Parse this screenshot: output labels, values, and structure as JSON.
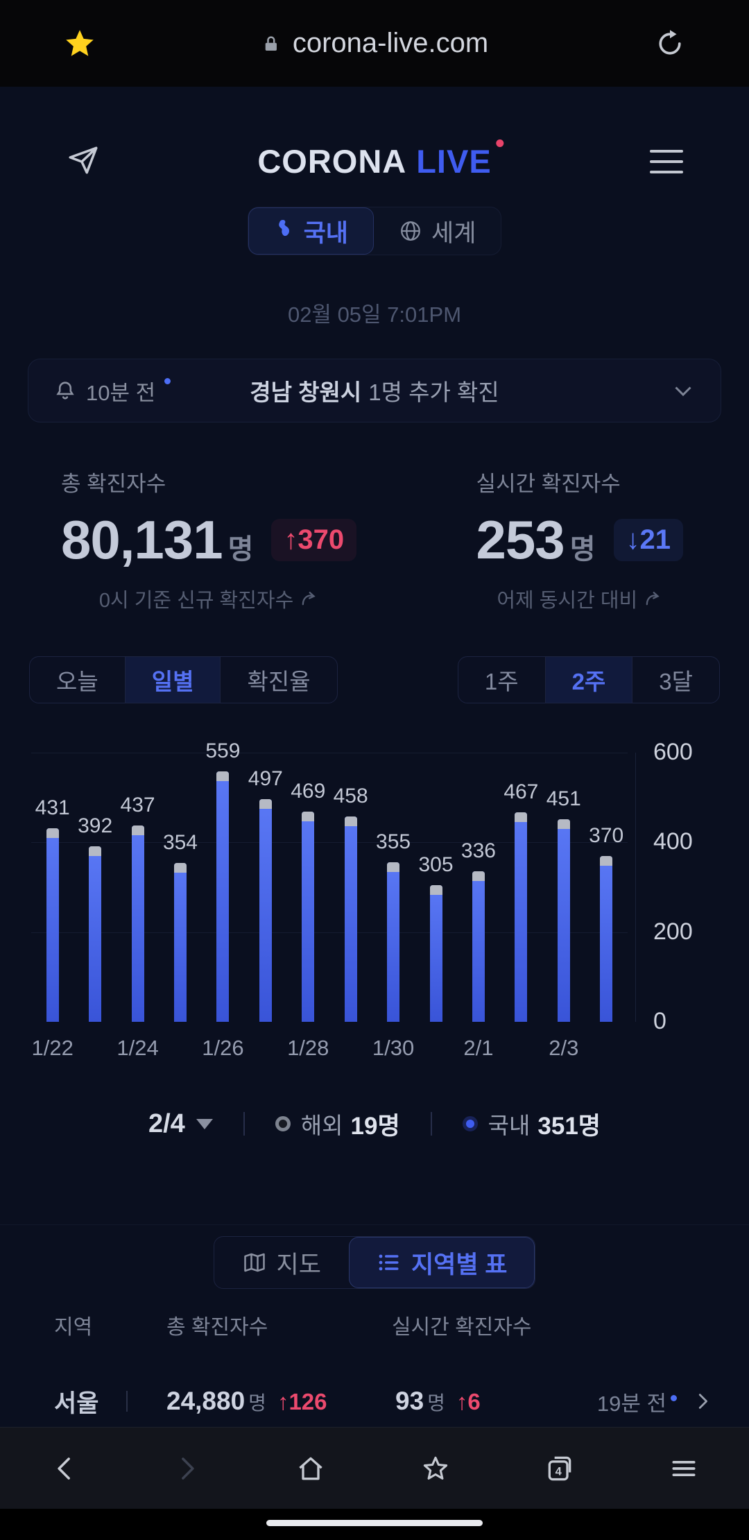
{
  "browser": {
    "url": "corona-live.com"
  },
  "header": {
    "brand_primary": "CORONA",
    "brand_accent": "LIVE"
  },
  "nav_tabs": {
    "domestic": "국내",
    "world": "세계"
  },
  "timestamp": "02월 05일 7:01PM",
  "notification": {
    "time_ago": "10분 전",
    "region": "경남 창원시",
    "message": "1명 추가 확진"
  },
  "stats": {
    "total": {
      "label": "총 확진자수",
      "value": "80,131",
      "unit": "명",
      "delta_arrow": "↑",
      "delta": "370",
      "caption": "0시 기준 신규 확진자수"
    },
    "live": {
      "label": "실시간 확진자수",
      "value": "253",
      "unit": "명",
      "delta_arrow": "↓",
      "delta": "21",
      "caption": "어제 동시간 대비"
    }
  },
  "chart_controls": {
    "metric_options": [
      "오늘",
      "일별",
      "확진율"
    ],
    "metric_selected": "일별",
    "range_options": [
      "1주",
      "2주",
      "3달"
    ],
    "range_selected": "2주"
  },
  "chart_data": {
    "type": "bar",
    "x": [
      "1/22",
      "1/23",
      "1/24",
      "1/25",
      "1/26",
      "1/27",
      "1/28",
      "1/29",
      "1/30",
      "1/31",
      "2/1",
      "2/2",
      "2/3",
      "2/4"
    ],
    "values": [
      431,
      392,
      437,
      354,
      559,
      497,
      469,
      458,
      355,
      305,
      336,
      467,
      451,
      370
    ],
    "x_tick_step": 2,
    "x_tick_labels": [
      "1/22",
      "1/24",
      "1/26",
      "1/28",
      "1/30",
      "2/1",
      "2/3"
    ],
    "ylim": [
      0,
      600
    ],
    "yticks": [
      0,
      200,
      400,
      600
    ],
    "grid": true,
    "bar_color": "#3e5ce8",
    "bar_cap_color": "#b6bac4",
    "selected": {
      "date": "2/4",
      "overseas_label": "해외",
      "overseas_value": "19명",
      "domestic_label": "국내",
      "domestic_value": "351명"
    }
  },
  "view_toggle": {
    "map_label": "지도",
    "table_label": "지역별 표"
  },
  "region_table": {
    "headers": {
      "region": "지역",
      "total": "총 확진자수",
      "live": "실시간 확진자수"
    },
    "row": {
      "region": "서울",
      "total_value": "24,880",
      "total_unit": "명",
      "total_delta_arrow": "↑",
      "total_delta": "126",
      "live_value": "93",
      "live_unit": "명",
      "live_delta_arrow": "↑",
      "live_delta": "6",
      "updated": "19분 전"
    }
  },
  "bottom_nav": {
    "tab_count": "4"
  },
  "colors": {
    "accent_blue": "#4d6ef5",
    "logo_blue": "#3f5cf0",
    "red": "#e8436a",
    "bar_blue": "#3e5ce8",
    "bar_cap_gray": "#b6bac4",
    "star_yellow": "#ffd21e",
    "background": "#0a0f1f"
  }
}
